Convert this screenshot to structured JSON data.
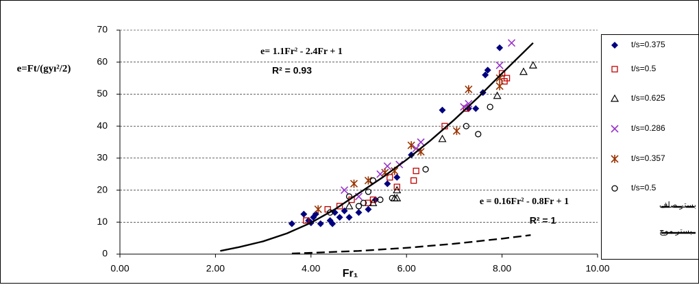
{
  "chart_data": {
    "type": "scatter",
    "y_label": "e=Ft/(gyı²/2)",
    "x_label": "Fr₁",
    "xlim": [
      0,
      10
    ],
    "ylim": [
      0,
      70
    ],
    "xticks": [
      {
        "value": 0,
        "label": "0.00"
      },
      {
        "value": 2,
        "label": "2.00"
      },
      {
        "value": 4,
        "label": "4.00"
      },
      {
        "value": 6,
        "label": "6.00"
      },
      {
        "value": 8,
        "label": "8.00"
      },
      {
        "value": 10,
        "label": "10.00"
      }
    ],
    "yticks": [
      0,
      10,
      20,
      30,
      40,
      50,
      60,
      70
    ],
    "grid": true,
    "legend": "right",
    "annotations": [
      "e= 1.1Fr² - 2.4Fr + 1",
      "R² = 0.93",
      "e = 0.16Fr² - 0.8Fr + 1",
      "R² = 1"
    ],
    "series": [
      {
        "name": "t/s=0.375",
        "color": "#000080",
        "marker": "diamond",
        "x": [
          3.6,
          3.85,
          3.95,
          4.0,
          4.05,
          4.1,
          4.2,
          4.4,
          4.45,
          4.5,
          4.6,
          4.7,
          4.8,
          5.0,
          5.2,
          5.35,
          5.6,
          5.8,
          6.1,
          6.75,
          7.3,
          7.45,
          7.6,
          7.65,
          7.7,
          7.95
        ],
        "values": [
          9.5,
          12.5,
          10.5,
          9.8,
          11.5,
          12.5,
          9.5,
          10.5,
          9.5,
          13,
          11.5,
          13.5,
          11.5,
          13,
          14,
          17,
          22,
          24,
          31,
          45,
          45.5,
          45.5,
          50.5,
          56,
          57.5,
          64.5
        ]
      },
      {
        "name": "t/s=0.5",
        "color": "#c00000",
        "marker": "square",
        "x": [
          3.9,
          4.35,
          4.6,
          4.85,
          5.2,
          5.3,
          5.65,
          5.8,
          6.15,
          6.2,
          6.8,
          7.25,
          8.0,
          8.05,
          8.1
        ],
        "values": [
          10.5,
          14,
          15,
          17,
          16,
          17,
          24,
          21,
          23,
          26,
          40,
          45.5,
          56.5,
          54,
          55
        ]
      },
      {
        "name": "t/s=0.625",
        "color": "#000000",
        "marker": "triangle",
        "x": [
          4.8,
          5.3,
          5.75,
          5.8,
          5.8,
          6.75,
          7.9,
          8.45,
          8.65
        ],
        "values": [
          15,
          16,
          17.5,
          17.5,
          20,
          36,
          49.5,
          57,
          59
        ]
      },
      {
        "name": "t/s=0.286",
        "color": "#9933cc",
        "marker": "x",
        "x": [
          4.7,
          5.0,
          5.45,
          5.6,
          5.85,
          6.2,
          6.3,
          7.2,
          7.3,
          7.95,
          8.2
        ],
        "values": [
          20,
          18,
          25,
          27.5,
          28,
          33,
          35,
          46,
          47,
          59,
          66
        ]
      },
      {
        "name": "t/s=0.357",
        "color": "#993300",
        "marker": "asterisk",
        "x": [
          4.15,
          4.9,
          5.2,
          5.55,
          5.75,
          6.1,
          6.3,
          7.05,
          7.3,
          7.95,
          7.95
        ],
        "values": [
          14,
          22,
          23,
          25.5,
          26,
          34,
          32,
          38.5,
          51.5,
          52.5,
          55
        ]
      },
      {
        "name": "t/s=0.5",
        "color": "#000000",
        "marker": "circle",
        "x": [
          4.4,
          4.8,
          5.0,
          5.1,
          5.2,
          5.3,
          5.45,
          5.7,
          6.4,
          7.25,
          7.5,
          7.75
        ],
        "values": [
          13,
          18,
          15,
          16,
          19.5,
          23,
          17,
          17.5,
          26.5,
          40,
          37.5,
          46
        ]
      },
      {
        "name": "بستر صاف",
        "color": "#000000",
        "line": "dashed",
        "x": [
          3.6,
          4,
          5,
          6,
          7,
          8,
          8.6
        ],
        "values": [
          0.2,
          0.4,
          1,
          1.96,
          3.24,
          4.84,
          5.95
        ]
      },
      {
        "name": "بستر موج",
        "color": "#000000",
        "line": "solid",
        "x": [
          2.1,
          2.5,
          3,
          3.5,
          4,
          4.5,
          5,
          5.5,
          6,
          6.5,
          7,
          7.5,
          8,
          8.65
        ],
        "values": [
          1,
          2.2,
          4,
          6.5,
          9.8,
          14,
          19,
          24,
          29.5,
          35.5,
          42,
          49,
          56.5,
          66
        ]
      }
    ]
  }
}
